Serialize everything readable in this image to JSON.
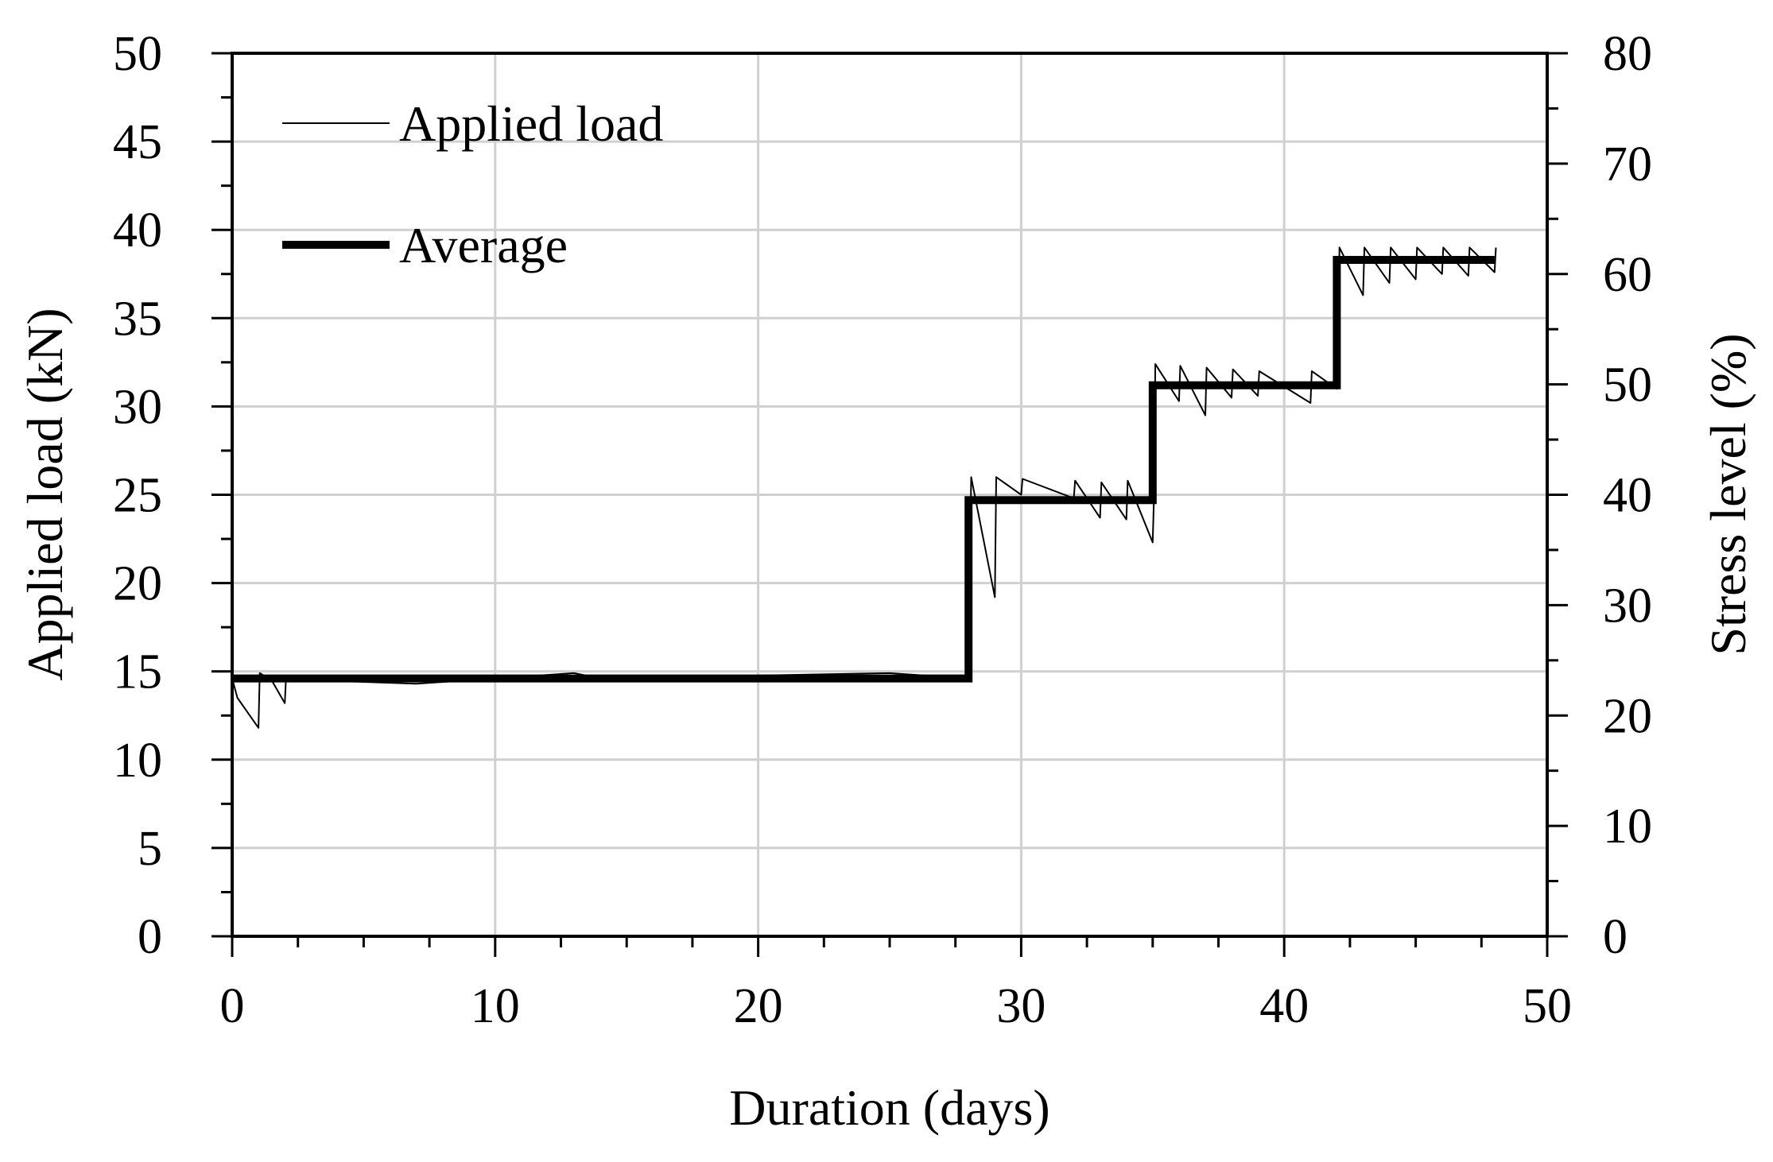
{
  "chart_data": {
    "type": "line",
    "title": "",
    "xlabel": "Duration (days)",
    "ylabel": "Applied load (kN)",
    "y2label": "Stress level (%)",
    "xlim": [
      0,
      50
    ],
    "ylim": [
      0,
      50
    ],
    "y2lim": [
      0,
      80
    ],
    "xticks": [
      "0",
      "10",
      "20",
      "30",
      "40",
      "50"
    ],
    "yticks": [
      "0",
      "5",
      "10",
      "15",
      "20",
      "25",
      "30",
      "35",
      "40",
      "45",
      "50"
    ],
    "y2ticks": [
      "0",
      "10",
      "20",
      "30",
      "40",
      "50",
      "60",
      "70",
      "80"
    ],
    "grid": true,
    "legend": "top-left",
    "series": [
      {
        "name": "Applied load",
        "style": "thin",
        "x": [
          0,
          0.2,
          1,
          1.05,
          1.5,
          2,
          2.05,
          3,
          7,
          12,
          13,
          14,
          25,
          28,
          28.1,
          29,
          29.05,
          30,
          30.05,
          32,
          32.05,
          33,
          33.05,
          34,
          34.05,
          35,
          35.05,
          35.1,
          36,
          36.05,
          37,
          37.05,
          38,
          38.05,
          39,
          39.05,
          41,
          41.05,
          42,
          42.05,
          42.1,
          43,
          43.05,
          44,
          44.05,
          45,
          45.05,
          46,
          46.05,
          47,
          47.05,
          48,
          48.05
        ],
        "y": [
          14.6,
          13.5,
          11.8,
          14.9,
          14.5,
          13.2,
          14.7,
          14.5,
          14.3,
          14.8,
          14.9,
          14.6,
          14.9,
          14.6,
          26.0,
          19.2,
          26.0,
          25.0,
          25.9,
          24.8,
          25.8,
          23.7,
          25.7,
          23.6,
          25.8,
          22.3,
          25.0,
          32.4,
          30.3,
          32.3,
          29.5,
          32.2,
          30.5,
          32.1,
          30.6,
          32.0,
          30.2,
          32.0,
          31.0,
          32.4,
          39.0,
          36.3,
          39.0,
          37.0,
          39.0,
          37.2,
          39.0,
          37.5,
          39.0,
          37.4,
          39.0,
          37.6,
          39.0
        ]
      },
      {
        "name": "Average",
        "style": "thick",
        "x": [
          0,
          28,
          28,
          35,
          35,
          42,
          42,
          48
        ],
        "y": [
          14.6,
          14.6,
          24.7,
          24.7,
          31.2,
          31.2,
          38.3,
          38.3
        ]
      }
    ]
  }
}
